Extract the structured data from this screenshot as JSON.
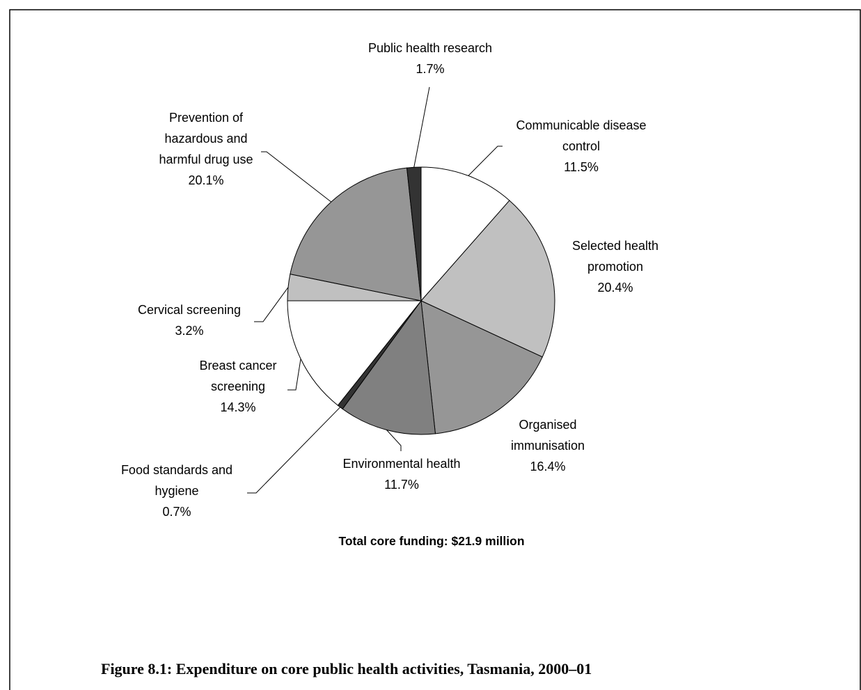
{
  "chart_data": {
    "type": "pie",
    "categories": [
      "Communicable disease control",
      "Selected health promotion",
      "Organised immunisation",
      "Environmental health",
      "Food standards and hygiene",
      "Breast cancer screening",
      "Cervical screening",
      "Prevention of hazardous and harmful drug use",
      "Public health research"
    ],
    "values": [
      11.5,
      20.4,
      16.4,
      11.7,
      0.7,
      14.3,
      3.2,
      20.1,
      1.7
    ],
    "value_labels": [
      "11.5%",
      "20.4%",
      "16.4%",
      "11.7%",
      "0.7%",
      "14.3%",
      "3.2%",
      "20.1%",
      "1.7%"
    ],
    "colors": [
      "#ffffff",
      "#c0c0c0",
      "#969696",
      "#808080",
      "#333333",
      "#ffffff",
      "#c0c0c0",
      "#969696",
      "#333333"
    ],
    "note": "Total core funding: $21.9 million"
  },
  "caption": "Figure 8.1: Expenditure on core public health activities, Tasmania, 2000–01"
}
